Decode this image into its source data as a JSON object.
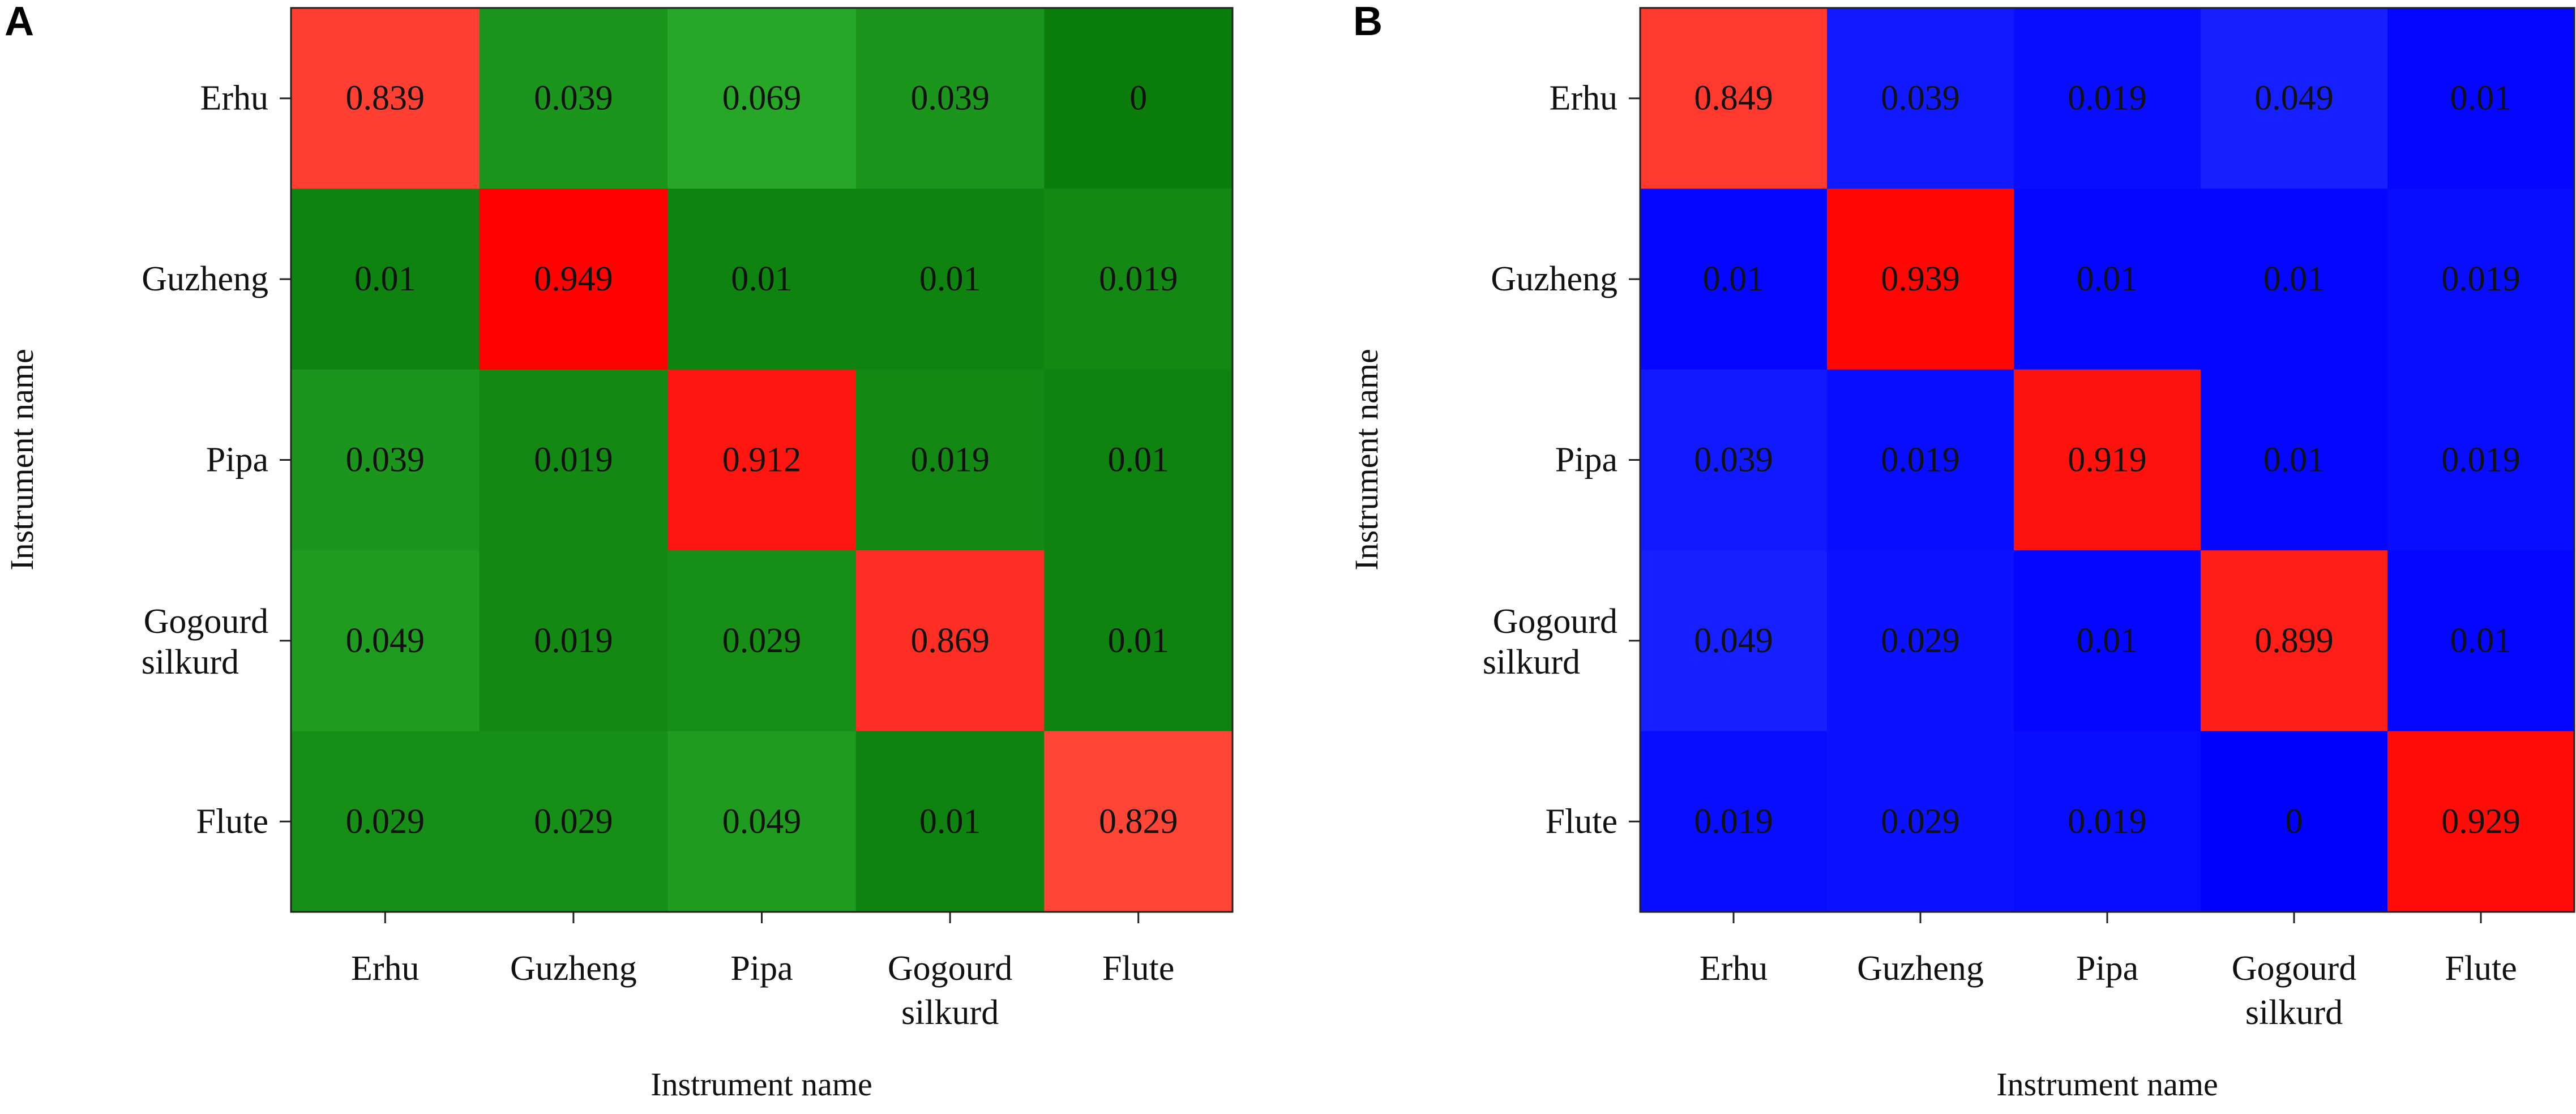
{
  "chart_data": [
    {
      "type": "heatmap",
      "panel_label": "A",
      "xlabel": "Instrument name",
      "ylabel": "Instrument name",
      "x_categories": [
        "Erhu",
        "Guzheng",
        "Pipa",
        "Gogourd silkurd",
        "Flute"
      ],
      "y_categories": [
        "Erhu",
        "Guzheng",
        "Pipa",
        "Gogourd silkurd",
        "Flute"
      ],
      "matrix": [
        [
          0.839,
          0.039,
          0.069,
          0.039,
          0
        ],
        [
          0.01,
          0.949,
          0.01,
          0.01,
          0.019
        ],
        [
          0.039,
          0.019,
          0.912,
          0.019,
          0.01
        ],
        [
          0.049,
          0.019,
          0.029,
          0.869,
          0.01
        ],
        [
          0.029,
          0.029,
          0.049,
          0.01,
          0.829
        ]
      ],
      "colors": {
        "base": "#0b7d0b",
        "light": "#27a827",
        "high": "#ff0000"
      }
    },
    {
      "type": "heatmap",
      "panel_label": "B",
      "xlabel": "Instrument name",
      "ylabel": "Instrument name",
      "x_categories": [
        "Erhu",
        "Guzheng",
        "Pipa",
        "Gogourd silkurd",
        "Flute"
      ],
      "y_categories": [
        "Erhu",
        "Guzheng",
        "Pipa",
        "Gogourd silkurd",
        "Flute"
      ],
      "matrix": [
        [
          0.849,
          0.039,
          0.019,
          0.049,
          0.01
        ],
        [
          0.01,
          0.939,
          0.01,
          0.01,
          0.019
        ],
        [
          0.039,
          0.019,
          0.919,
          0.01,
          0.019
        ],
        [
          0.049,
          0.029,
          0.01,
          0.899,
          0.01
        ],
        [
          0.019,
          0.029,
          0.019,
          0,
          0.929
        ]
      ],
      "colors": {
        "base": "#0000ff",
        "light": "#1e2cff",
        "high": "#ff0000"
      }
    }
  ]
}
